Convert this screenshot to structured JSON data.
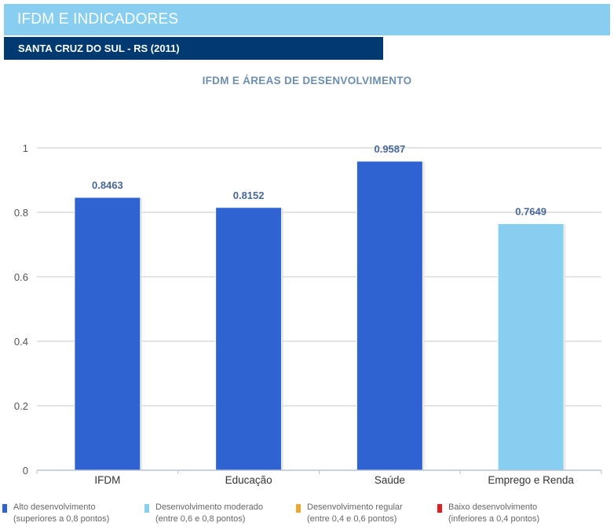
{
  "header": {
    "title": "IFDM E INDICADORES",
    "subtitle": "SANTA CRUZ DO SUL - RS (2011)"
  },
  "chart_data": {
    "type": "bar",
    "title": "IFDM E ÁREAS DE DESENVOLVIMENTO",
    "categories": [
      "IFDM",
      "Educação",
      "Saúde",
      "Emprego e Renda"
    ],
    "values": [
      0.8463,
      0.8152,
      0.9587,
      0.7649
    ],
    "value_labels": [
      "0.8463",
      "0.8152",
      "0.9587",
      "0.7649"
    ],
    "bar_colors": [
      "#2f63d2",
      "#2f63d2",
      "#2f63d2",
      "#87cef0"
    ],
    "y_ticks": [
      "0",
      "0.2",
      "0.4",
      "0.6",
      "0.8",
      "1"
    ],
    "ylim": [
      0,
      1
    ],
    "xlabel": "",
    "ylabel": "",
    "grid": true
  },
  "legend": [
    {
      "color": "#2f63d2",
      "line1": "Alto desenvolvimento",
      "line2": "(superiores a 0,8 pontos)"
    },
    {
      "color": "#87cef0",
      "line1": "Desenvolvimento moderado",
      "line2": "(entre 0,6 e 0,8 pontos)"
    },
    {
      "color": "#f0a830",
      "line1": "Desenvolvimento regular",
      "line2": "(entre 0,4 e 0,6 pontos)"
    },
    {
      "color": "#e02020",
      "line1": "Baixo desenvolvimento",
      "line2": "(inferiores a 0,4 pontos)"
    }
  ]
}
